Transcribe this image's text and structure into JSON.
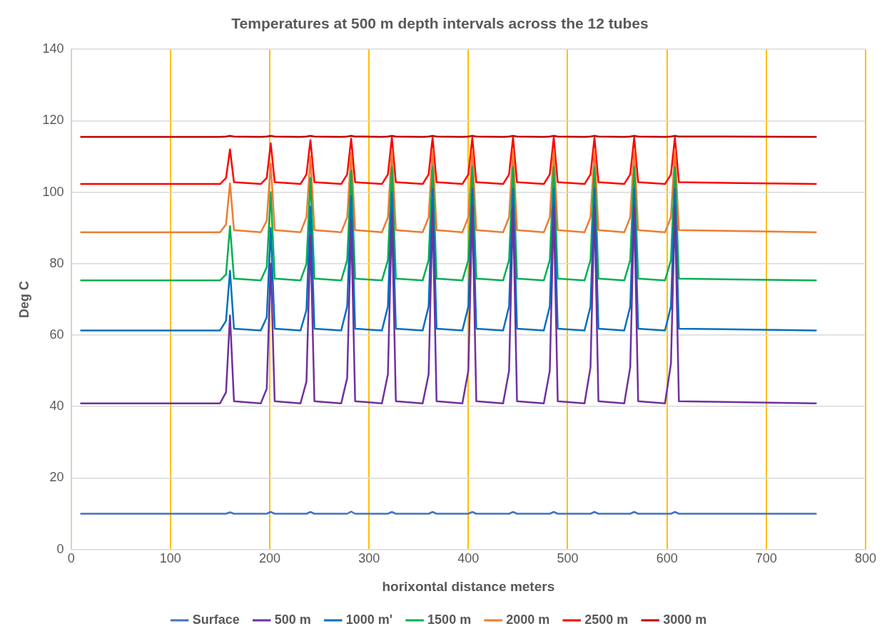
{
  "chart_data": {
    "type": "line",
    "title": "Temperatures at 500 m depth intervals across the 12 tubes",
    "xlabel": "horixontal distance meters",
    "ylabel": "Deg C",
    "x": [
      10,
      150,
      156,
      160,
      164,
      191,
      197,
      201,
      205,
      231,
      237,
      241,
      245,
      272,
      278,
      282,
      286,
      313,
      319,
      323,
      327,
      354,
      360,
      364,
      368,
      394,
      400,
      404,
      408,
      435,
      441,
      445,
      449,
      476,
      482,
      486,
      490,
      517,
      523,
      527,
      531,
      557,
      563,
      567,
      571,
      598,
      604,
      608,
      612,
      750
    ],
    "series": [
      {
        "name": "Surface",
        "color": "#4472c4",
        "values": [
          10,
          10,
          10,
          10.4,
          10,
          10,
          10,
          10.5,
          10,
          10,
          10,
          10.5,
          10,
          10,
          10,
          10.6,
          10,
          10,
          10,
          10.5,
          10,
          10,
          10,
          10.5,
          10,
          10,
          10,
          10.5,
          10,
          10,
          10,
          10.5,
          10,
          10,
          10,
          10.5,
          10,
          10,
          10,
          10.5,
          10,
          10,
          10,
          10.5,
          10,
          10,
          10,
          10.5,
          10,
          10
        ]
      },
      {
        "name": "500 m",
        "color": "#7030a0",
        "values": [
          40.9,
          40.9,
          44,
          65.5,
          41.5,
          40.9,
          45,
          80,
          41.5,
          40.9,
          47,
          88,
          41.5,
          40.9,
          48,
          92,
          41.5,
          40.9,
          49,
          94,
          41.5,
          40.9,
          49,
          95,
          41.5,
          40.9,
          50,
          96,
          41.5,
          40.9,
          50,
          96,
          41.5,
          40.9,
          50,
          96,
          41.5,
          40.9,
          51,
          96,
          41.5,
          40.9,
          51,
          96,
          41.5,
          40.9,
          52,
          96,
          41.5,
          40.9
        ]
      },
      {
        "name": "1000 m'",
        "color": "#0070c0",
        "values": [
          61.3,
          61.3,
          64,
          78,
          61.8,
          61.3,
          65,
          90,
          61.8,
          61.3,
          67,
          96,
          61.8,
          61.3,
          68,
          99,
          61.8,
          61.3,
          68,
          100,
          61.8,
          61.3,
          68,
          101,
          61.8,
          61.3,
          68,
          101,
          61.8,
          61.3,
          68,
          101,
          61.8,
          61.3,
          68,
          101,
          61.8,
          61.3,
          68,
          101,
          61.8,
          61.3,
          68,
          101,
          61.8,
          61.3,
          68,
          101,
          61.8,
          61.3
        ]
      },
      {
        "name": "1500 m",
        "color": "#00b050",
        "values": [
          75.3,
          75.3,
          77,
          90.5,
          75.8,
          75.3,
          79,
          100,
          75.8,
          75.3,
          80,
          104,
          75.8,
          75.3,
          81,
          106,
          75.8,
          75.3,
          81,
          107,
          75.8,
          75.3,
          81,
          107,
          75.8,
          75.3,
          81,
          107,
          75.8,
          75.3,
          81,
          107,
          75.8,
          75.3,
          81,
          107,
          75.8,
          75.3,
          81,
          107,
          75.8,
          75.3,
          81,
          107,
          75.8,
          75.3,
          81,
          107,
          75.8,
          75.3
        ]
      },
      {
        "name": "2000 m",
        "color": "#ed7d31",
        "values": [
          88.8,
          88.8,
          91,
          102.5,
          89.4,
          88.8,
          92,
          108,
          89.4,
          88.8,
          93,
          110,
          89.4,
          88.8,
          93,
          111,
          89.4,
          88.8,
          93,
          112,
          89.4,
          88.8,
          93,
          112,
          89.4,
          88.8,
          93,
          112,
          89.4,
          88.8,
          93,
          112,
          89.4,
          88.8,
          93,
          112,
          89.4,
          88.8,
          93,
          112,
          89.4,
          88.8,
          93,
          112,
          89.4,
          88.8,
          93,
          112,
          89.4,
          88.8
        ]
      },
      {
        "name": "2500 m",
        "color": "#ff0000",
        "values": [
          102.3,
          102.3,
          104,
          112,
          102.8,
          102.3,
          104,
          113.7,
          102.8,
          102.3,
          105,
          114.6,
          102.8,
          102.3,
          105,
          115,
          102.8,
          102.3,
          105,
          115.3,
          102.8,
          102.3,
          105,
          115.3,
          102.8,
          102.3,
          105,
          115.3,
          102.8,
          102.3,
          105,
          115.3,
          102.8,
          102.3,
          105,
          115.3,
          102.8,
          102.3,
          105,
          115.3,
          102.8,
          102.3,
          105,
          115.3,
          102.8,
          102.3,
          105,
          115.3,
          102.8,
          102.3
        ]
      },
      {
        "name": "3000 m",
        "color": "#c00000",
        "values": [
          115.5,
          115.5,
          115.6,
          115.8,
          115.6,
          115.5,
          115.6,
          115.8,
          115.6,
          115.5,
          115.6,
          115.8,
          115.6,
          115.5,
          115.6,
          115.8,
          115.6,
          115.5,
          115.6,
          115.8,
          115.6,
          115.5,
          115.6,
          115.8,
          115.6,
          115.5,
          115.6,
          115.8,
          115.6,
          115.5,
          115.6,
          115.8,
          115.6,
          115.5,
          115.6,
          115.8,
          115.6,
          115.5,
          115.6,
          115.8,
          115.6,
          115.5,
          115.6,
          115.8,
          115.6,
          115.5,
          115.6,
          115.8,
          115.6,
          115.5
        ]
      }
    ],
    "xlim": [
      0,
      800
    ],
    "xticks": [
      0,
      100,
      200,
      300,
      400,
      500,
      600,
      700,
      800
    ],
    "ylim": [
      0,
      140
    ],
    "yticks": [
      0,
      20,
      40,
      60,
      80,
      100,
      120,
      140
    ],
    "grid": true,
    "legend": "bottom",
    "marker": "none",
    "line_style": "solid"
  }
}
